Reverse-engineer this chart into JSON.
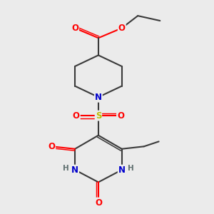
{
  "bg_color": "#ebebeb",
  "bond_color": "#3a3a3a",
  "bond_width": 1.5,
  "atom_colors": {
    "O": "#ff0000",
    "N": "#0000cc",
    "S": "#bbbb00",
    "C": "#3a3a3a",
    "H": "#607070"
  },
  "font_size": 8.5
}
